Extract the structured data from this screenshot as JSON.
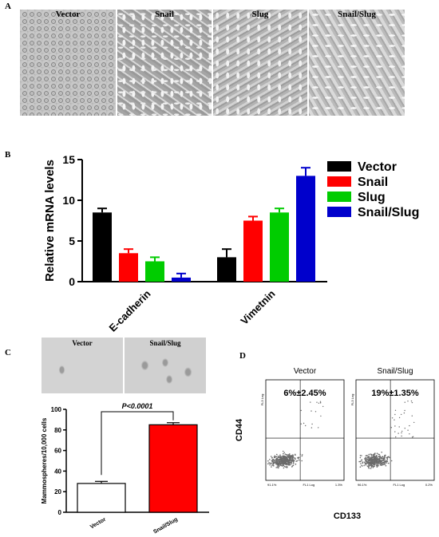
{
  "panels": {
    "a": {
      "letter": "A",
      "images": [
        {
          "label": "Vector"
        },
        {
          "label": "Snail"
        },
        {
          "label": "Slug"
        },
        {
          "label": "Snail/Slug"
        }
      ]
    },
    "b": {
      "letter": "B"
    },
    "c": {
      "letter": "C",
      "images": [
        {
          "label": "Vector"
        },
        {
          "label": "Snail/Slug"
        }
      ]
    },
    "d": {
      "letter": "D",
      "plots": [
        {
          "title": "Vector",
          "percent": "6%±2.45%",
          "x_axis_tick": "FL1 Log",
          "y_axis_tick": "FL3 Log",
          "q_bl": "91.1%",
          "q_br": "1.3%"
        },
        {
          "title": "Snail/Slug",
          "percent": "19%±1.35%",
          "x_axis_tick": "FL1 Log",
          "y_axis_tick": "FL3 Log",
          "q_bl": "96.1%",
          "q_br": "0.2%"
        }
      ],
      "ylabel": "CD44",
      "xlabel": "CD133"
    }
  },
  "chart_data": [
    {
      "type": "bar",
      "categories": [
        "E-cadherin",
        "Vimetnin"
      ],
      "series": [
        {
          "name": "Vector",
          "values": [
            8.5,
            3.0
          ],
          "errors": [
            0.5,
            1.0
          ],
          "color": "#000000"
        },
        {
          "name": "Snail",
          "values": [
            3.5,
            7.5
          ],
          "errors": [
            0.5,
            0.5
          ],
          "color": "#ff0000"
        },
        {
          "name": "Slug",
          "values": [
            2.5,
            8.5
          ],
          "errors": [
            0.5,
            0.5
          ],
          "color": "#00cc00"
        },
        {
          "name": "Snail/Slug",
          "values": [
            0.5,
            13.0
          ],
          "errors": [
            0.5,
            1.0
          ],
          "color": "#0000cc"
        }
      ],
      "ylabel": "Relative mRNA levels",
      "yticks": [
        0,
        5,
        10,
        15
      ],
      "ylim": [
        0,
        15
      ],
      "legend": "right"
    },
    {
      "type": "bar",
      "categories": [
        "Vector",
        "Snail/Slug"
      ],
      "values": [
        28,
        85
      ],
      "errors": [
        2,
        2
      ],
      "colors": [
        "#ffffff",
        "#ff0000"
      ],
      "ylabel": "Mammospheres/10,000 cells",
      "yticks": [
        0,
        20,
        40,
        60,
        80,
        100
      ],
      "ylim": [
        0,
        100
      ],
      "annotation": "P<0.0001"
    }
  ]
}
